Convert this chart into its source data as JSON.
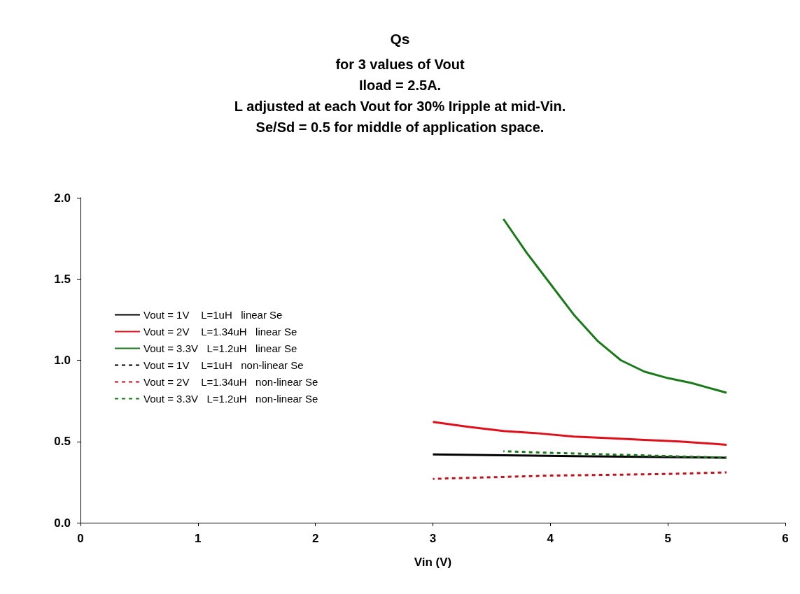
{
  "chart_data": {
    "type": "line",
    "title": "Qs",
    "subtitle": "for 3 values of Vout\nIload = 2.5A.\nL adjusted at each Vout for 30% Iripple at mid-Vin.\nSe/Sd = 0.5 for middle of application space.",
    "xlabel": "Vin (V)",
    "xlim": [
      0,
      6
    ],
    "xticks": [
      0,
      1,
      2,
      3,
      4,
      5,
      6
    ],
    "ylim": [
      0,
      2
    ],
    "yticks": [
      {
        "value": 0,
        "label": "0.0"
      },
      {
        "value": 0.5,
        "label": "0.5"
      },
      {
        "value": 1,
        "label": "1.0"
      },
      {
        "value": 1.5,
        "label": "1.5"
      },
      {
        "value": 2,
        "label": "2.0"
      }
    ],
    "grid": false,
    "legend": "left",
    "marker": "none",
    "series": [
      {
        "name": "Vout = 1V    L=1uH   linear Se",
        "color": "#000000",
        "line_style": "solid",
        "x": [
          3.0,
          3.6,
          4.2,
          4.8,
          5.5
        ],
        "values": [
          0.42,
          0.415,
          0.41,
          0.405,
          0.4
        ]
      },
      {
        "name": "Vout = 2V    L=1.34uH   linear Se",
        "color": "#e0101a",
        "line_style": "solid",
        "x": [
          3.0,
          3.3,
          3.6,
          3.9,
          4.2,
          4.5,
          4.8,
          5.1,
          5.5
        ],
        "values": [
          0.62,
          0.59,
          0.565,
          0.55,
          0.53,
          0.52,
          0.51,
          0.5,
          0.48
        ]
      },
      {
        "name": "Vout = 3.3V   L=1.2uH   linear Se",
        "color": "#1a7a1a",
        "line_style": "solid",
        "x": [
          3.6,
          3.8,
          4.0,
          4.2,
          4.4,
          4.6,
          4.8,
          5.0,
          5.2,
          5.5
        ],
        "values": [
          1.87,
          1.66,
          1.47,
          1.28,
          1.12,
          1.0,
          0.93,
          0.89,
          0.86,
          0.8
        ]
      },
      {
        "name": "Vout = 1V    L=1uH   non-linear Se",
        "color": "#000000",
        "line_style": "dashed"
      },
      {
        "name": "Vout = 2V    L=1.34uH   non-linear Se",
        "color": "#c0141e",
        "line_style": "dashed",
        "x": [
          3.0,
          3.5,
          4.0,
          4.5,
          5.0,
          5.5
        ],
        "values": [
          0.27,
          0.28,
          0.29,
          0.295,
          0.3,
          0.31
        ]
      },
      {
        "name": "Vout = 3.3V   L=1.2uH   non-linear Se",
        "color": "#1a7a1a",
        "line_style": "dashed",
        "x": [
          3.6,
          4.0,
          4.5,
          5.0,
          5.5
        ],
        "values": [
          0.44,
          0.43,
          0.42,
          0.41,
          0.4
        ]
      }
    ]
  }
}
